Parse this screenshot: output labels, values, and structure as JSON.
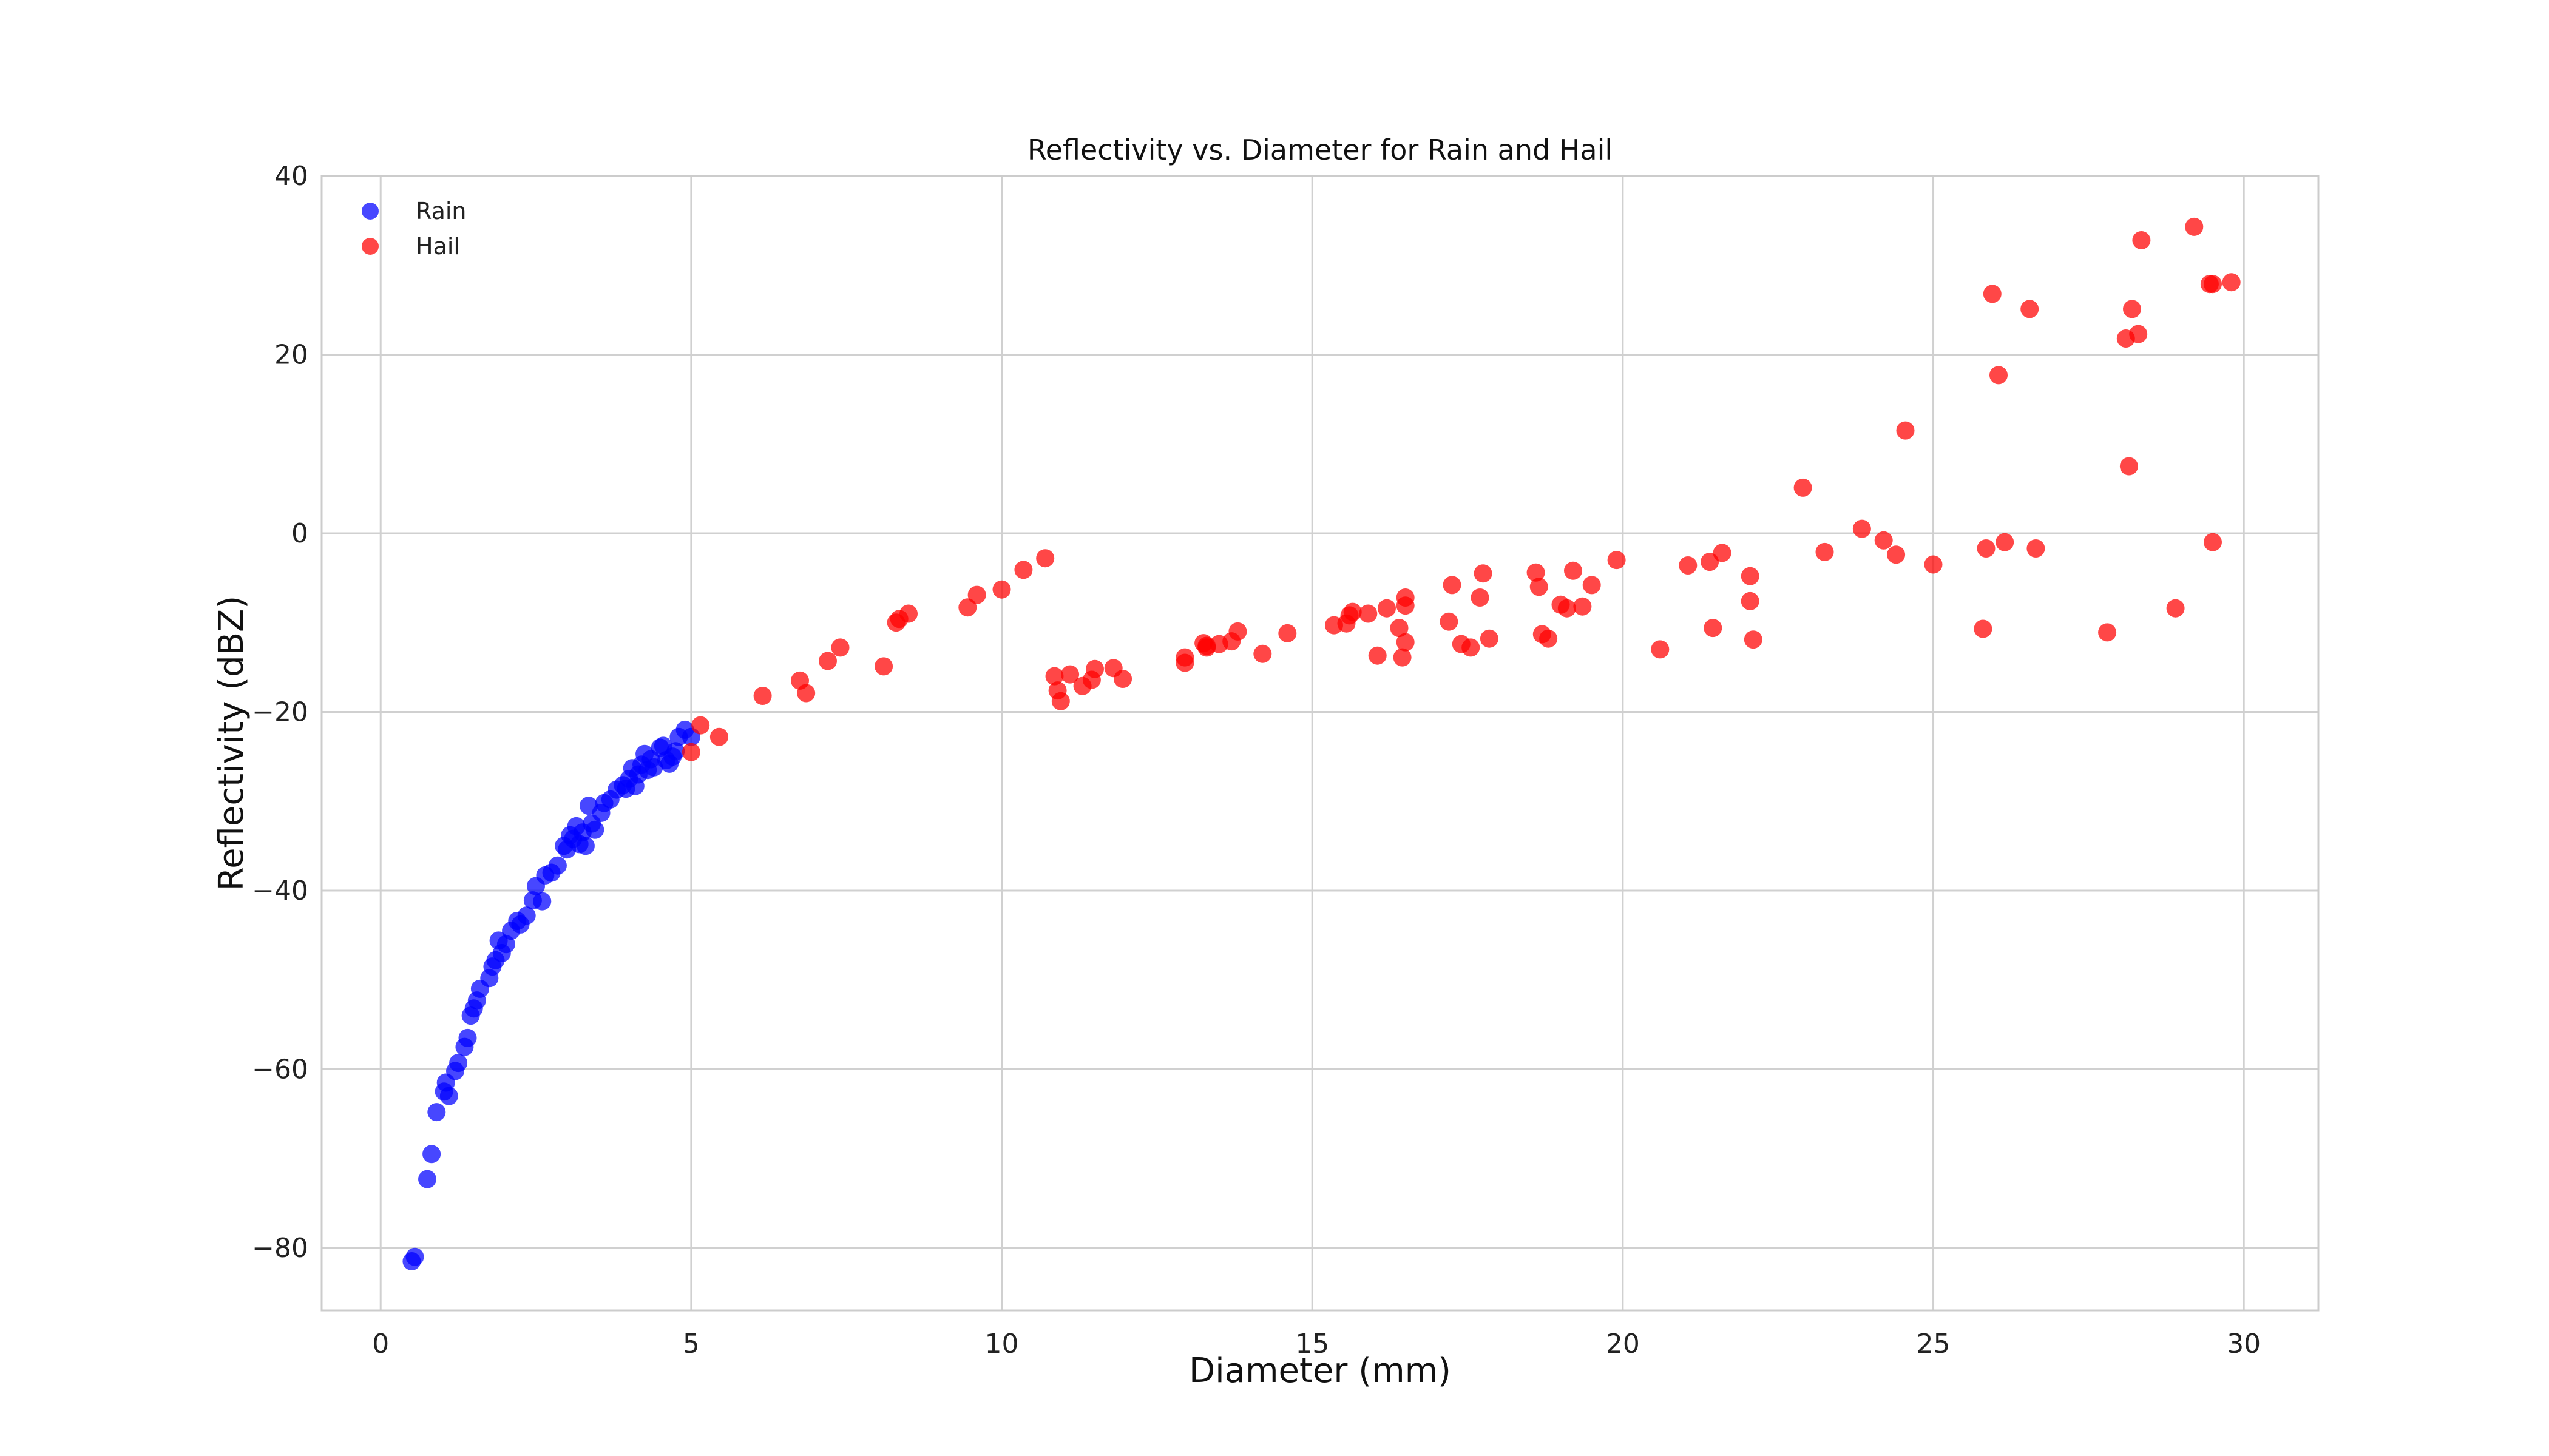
{
  "chart_data": {
    "type": "scatter",
    "title": "Reflectivity vs. Diameter for Rain and Hail",
    "xlabel": "Diameter (mm)",
    "ylabel": "Reflectivity (dBZ)",
    "xlim": [
      -0.95,
      31.2
    ],
    "ylim": [
      -87,
      40
    ],
    "xticks": [
      0,
      5,
      10,
      15,
      20,
      25,
      30
    ],
    "yticks": [
      -80,
      -60,
      -40,
      -20,
      0,
      20,
      40
    ],
    "ytick_labels": [
      "−80",
      "−60",
      "−40",
      "−20",
      "0",
      "20",
      "40"
    ],
    "grid": true,
    "legend_position": "top-left",
    "series": [
      {
        "name": "Rain",
        "color": "#0000ff",
        "points": [
          [
            0.5,
            -81.5
          ],
          [
            0.55,
            -81.0
          ],
          [
            0.75,
            -72.3
          ],
          [
            0.82,
            -69.5
          ],
          [
            0.9,
            -64.8
          ],
          [
            1.02,
            -62.5
          ],
          [
            1.05,
            -61.5
          ],
          [
            1.1,
            -63.0
          ],
          [
            1.2,
            -60.2
          ],
          [
            1.25,
            -59.3
          ],
          [
            1.35,
            -57.5
          ],
          [
            1.4,
            -56.5
          ],
          [
            1.45,
            -54.0
          ],
          [
            1.5,
            -53.2
          ],
          [
            1.55,
            -52.3
          ],
          [
            1.6,
            -51.0
          ],
          [
            1.75,
            -49.8
          ],
          [
            1.8,
            -48.5
          ],
          [
            1.85,
            -47.8
          ],
          [
            1.9,
            -45.6
          ],
          [
            1.95,
            -47.0
          ],
          [
            2.02,
            -46.0
          ],
          [
            2.1,
            -44.5
          ],
          [
            2.2,
            -43.4
          ],
          [
            2.25,
            -43.8
          ],
          [
            2.35,
            -42.8
          ],
          [
            2.45,
            -41.1
          ],
          [
            2.5,
            -39.5
          ],
          [
            2.6,
            -41.2
          ],
          [
            2.65,
            -38.3
          ],
          [
            2.75,
            -38.0
          ],
          [
            2.85,
            -37.2
          ],
          [
            2.95,
            -35.0
          ],
          [
            3.0,
            -35.4
          ],
          [
            3.05,
            -33.8
          ],
          [
            3.1,
            -34.2
          ],
          [
            3.15,
            -32.8
          ],
          [
            3.2,
            -34.8
          ],
          [
            3.25,
            -33.5
          ],
          [
            3.3,
            -35.0
          ],
          [
            3.35,
            -30.5
          ],
          [
            3.4,
            -32.5
          ],
          [
            3.45,
            -33.2
          ],
          [
            3.55,
            -31.3
          ],
          [
            3.6,
            -30.2
          ],
          [
            3.7,
            -29.8
          ],
          [
            3.8,
            -28.7
          ],
          [
            3.9,
            -28.2
          ],
          [
            3.95,
            -28.6
          ],
          [
            4.0,
            -27.5
          ],
          [
            4.05,
            -26.3
          ],
          [
            4.1,
            -28.3
          ],
          [
            4.15,
            -27.0
          ],
          [
            4.2,
            -25.9
          ],
          [
            4.25,
            -24.7
          ],
          [
            4.3,
            -26.5
          ],
          [
            4.35,
            -25.3
          ],
          [
            4.4,
            -26.2
          ],
          [
            4.5,
            -24.0
          ],
          [
            4.55,
            -23.8
          ],
          [
            4.6,
            -25.4
          ],
          [
            4.65,
            -25.8
          ],
          [
            4.7,
            -25.0
          ],
          [
            4.75,
            -24.4
          ],
          [
            4.8,
            -22.8
          ],
          [
            4.9,
            -22.0
          ],
          [
            5.0,
            -22.8
          ]
        ]
      },
      {
        "name": "Hail",
        "color": "#ff0000",
        "points": [
          [
            5.0,
            -24.5
          ],
          [
            5.15,
            -21.5
          ],
          [
            5.45,
            -22.8
          ],
          [
            6.15,
            -18.2
          ],
          [
            6.75,
            -16.5
          ],
          [
            6.85,
            -17.9
          ],
          [
            7.2,
            -14.3
          ],
          [
            7.4,
            -12.8
          ],
          [
            8.1,
            -14.9
          ],
          [
            8.3,
            -10.0
          ],
          [
            8.35,
            -9.6
          ],
          [
            8.5,
            -9.0
          ],
          [
            9.45,
            -8.3
          ],
          [
            9.6,
            -6.9
          ],
          [
            10.0,
            -6.3
          ],
          [
            10.35,
            -4.1
          ],
          [
            10.7,
            -2.8
          ],
          [
            10.85,
            -16.0
          ],
          [
            10.9,
            -17.6
          ],
          [
            10.95,
            -18.8
          ],
          [
            11.1,
            -15.8
          ],
          [
            11.3,
            -17.1
          ],
          [
            11.45,
            -16.4
          ],
          [
            11.5,
            -15.2
          ],
          [
            11.8,
            -15.1
          ],
          [
            11.95,
            -16.3
          ],
          [
            12.95,
            -14.5
          ],
          [
            12.95,
            -13.9
          ],
          [
            13.25,
            -12.3
          ],
          [
            13.3,
            -12.8
          ],
          [
            13.3,
            -12.6
          ],
          [
            13.5,
            -12.4
          ],
          [
            13.7,
            -12.1
          ],
          [
            13.8,
            -11.0
          ],
          [
            14.2,
            -13.5
          ],
          [
            14.6,
            -11.2
          ],
          [
            15.35,
            -10.3
          ],
          [
            15.55,
            -10.1
          ],
          [
            15.6,
            -9.2
          ],
          [
            15.65,
            -8.8
          ],
          [
            15.9,
            -9.0
          ],
          [
            16.05,
            -13.7
          ],
          [
            16.2,
            -8.4
          ],
          [
            16.4,
            -10.6
          ],
          [
            16.45,
            -13.9
          ],
          [
            16.5,
            -12.2
          ],
          [
            16.5,
            -7.2
          ],
          [
            16.5,
            -8.1
          ],
          [
            17.2,
            -9.9
          ],
          [
            17.25,
            -5.8
          ],
          [
            17.4,
            -12.4
          ],
          [
            17.55,
            -12.8
          ],
          [
            17.7,
            -7.2
          ],
          [
            17.75,
            -4.5
          ],
          [
            17.85,
            -11.8
          ],
          [
            18.6,
            -4.4
          ],
          [
            18.65,
            -6.0
          ],
          [
            18.7,
            -11.3
          ],
          [
            18.8,
            -11.8
          ],
          [
            19.0,
            -8.0
          ],
          [
            19.1,
            -8.4
          ],
          [
            19.2,
            -4.2
          ],
          [
            19.35,
            -8.2
          ],
          [
            19.5,
            -5.8
          ],
          [
            19.9,
            -3.0
          ],
          [
            20.6,
            -13.0
          ],
          [
            21.05,
            -3.6
          ],
          [
            21.4,
            -3.2
          ],
          [
            21.45,
            -10.6
          ],
          [
            21.6,
            -2.2
          ],
          [
            22.05,
            -7.6
          ],
          [
            22.05,
            -4.8
          ],
          [
            22.1,
            -11.9
          ],
          [
            22.9,
            5.1
          ],
          [
            23.25,
            -2.1
          ],
          [
            23.85,
            0.5
          ],
          [
            24.2,
            -0.8
          ],
          [
            24.4,
            -2.4
          ],
          [
            24.55,
            11.5
          ],
          [
            25.0,
            -3.5
          ],
          [
            25.8,
            -10.7
          ],
          [
            25.85,
            -1.7
          ],
          [
            25.95,
            26.8
          ],
          [
            26.05,
            17.7
          ],
          [
            26.15,
            -1.0
          ],
          [
            26.55,
            25.1
          ],
          [
            26.65,
            -1.7
          ],
          [
            27.8,
            -11.1
          ],
          [
            28.1,
            21.8
          ],
          [
            28.15,
            7.5
          ],
          [
            28.2,
            25.1
          ],
          [
            28.3,
            22.3
          ],
          [
            28.35,
            32.8
          ],
          [
            28.9,
            -8.4
          ],
          [
            29.2,
            34.3
          ],
          [
            29.45,
            27.9
          ],
          [
            29.5,
            -1.0
          ],
          [
            29.5,
            27.9
          ],
          [
            29.8,
            28.1
          ]
        ]
      }
    ]
  }
}
